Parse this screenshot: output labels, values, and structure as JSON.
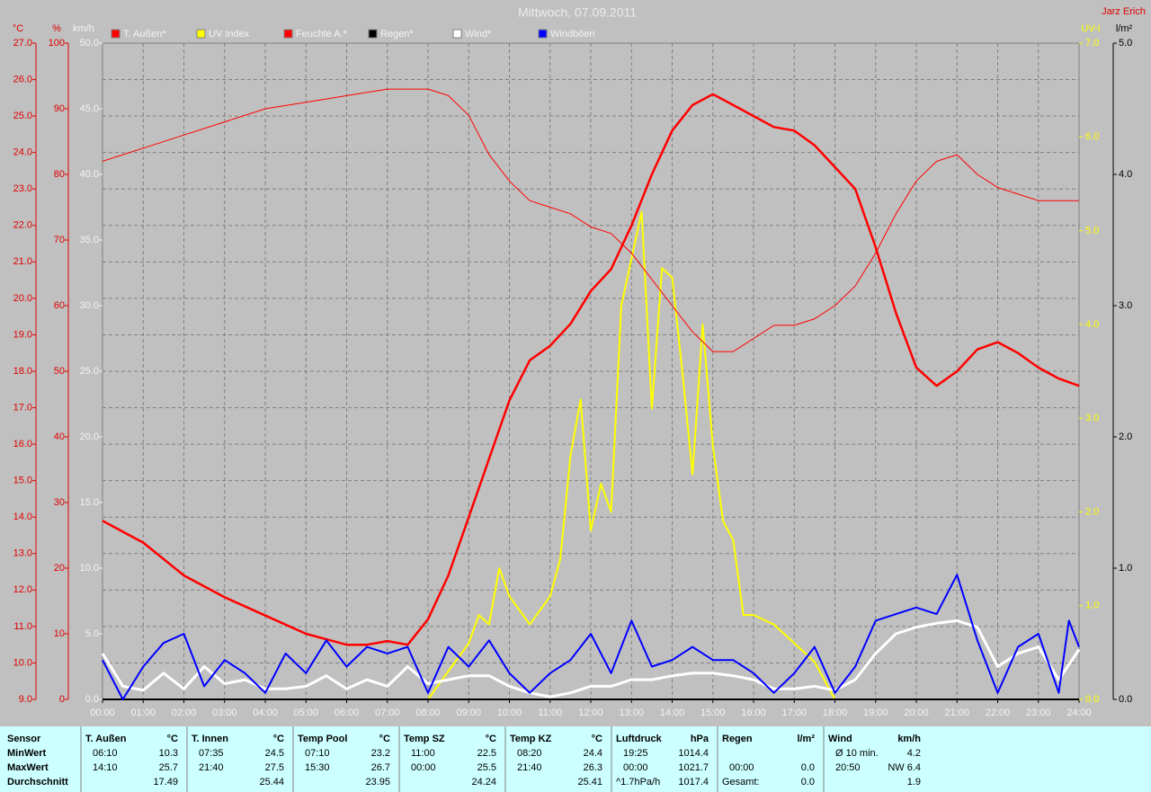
{
  "chart_data": {
    "type": "line",
    "title": "Mittwoch, 07.09.2011",
    "author": "Jarz Erich",
    "grid": true,
    "xlim": [
      0,
      24
    ],
    "xticks": [
      {
        "value": 0,
        "label": "00:00"
      },
      {
        "value": 1,
        "label": "01:00"
      },
      {
        "value": 2,
        "label": "02:00"
      },
      {
        "value": 3,
        "label": "03:00"
      },
      {
        "value": 4,
        "label": "04:00"
      },
      {
        "value": 5,
        "label": "05:00"
      },
      {
        "value": 6,
        "label": "06:00"
      },
      {
        "value": 7,
        "label": "07:00"
      },
      {
        "value": 8,
        "label": "08:00"
      },
      {
        "value": 9,
        "label": "09:00"
      },
      {
        "value": 10,
        "label": "10:00"
      },
      {
        "value": 11,
        "label": "11:00"
      },
      {
        "value": 12,
        "label": "12:00"
      },
      {
        "value": 13,
        "label": "13:00"
      },
      {
        "value": 14,
        "label": "14:00"
      },
      {
        "value": 15,
        "label": "15:00"
      },
      {
        "value": 16,
        "label": "16:00"
      },
      {
        "value": 17,
        "label": "17:00"
      },
      {
        "value": 18,
        "label": "18:00"
      },
      {
        "value": 19,
        "label": "19:00"
      },
      {
        "value": 20,
        "label": "20:00"
      },
      {
        "value": 21,
        "label": "21:00"
      },
      {
        "value": 22,
        "label": "22:00"
      },
      {
        "value": 23,
        "label": "23:00"
      },
      {
        "value": 24,
        "label": "24:00"
      }
    ],
    "axes": {
      "temp": {
        "label": "°C",
        "color": "#e00000",
        "lim": [
          9,
          27
        ],
        "ticks": [
          {
            "value": 9,
            "label": "9.0"
          },
          {
            "value": 10,
            "label": "10.0"
          },
          {
            "value": 11,
            "label": "11.0"
          },
          {
            "value": 12,
            "label": "12.0"
          },
          {
            "value": 13,
            "label": "13.0"
          },
          {
            "value": 14,
            "label": "14.0"
          },
          {
            "value": 15,
            "label": "15.0"
          },
          {
            "value": 16,
            "label": "16.0"
          },
          {
            "value": 17,
            "label": "17.0"
          },
          {
            "value": 18,
            "label": "18.0"
          },
          {
            "value": 19,
            "label": "19.0"
          },
          {
            "value": 20,
            "label": "20.0"
          },
          {
            "value": 21,
            "label": "21.0"
          },
          {
            "value": 22,
            "label": "22.0"
          },
          {
            "value": 23,
            "label": "23.0"
          },
          {
            "value": 24,
            "label": "24.0"
          },
          {
            "value": 25,
            "label": "25.0"
          },
          {
            "value": 26,
            "label": "26.0"
          },
          {
            "value": 27,
            "label": "27.0"
          }
        ]
      },
      "humidity": {
        "label": "%",
        "color": "#e00000",
        "lim": [
          0,
          100
        ],
        "ticks": [
          0,
          10,
          20,
          30,
          40,
          50,
          60,
          70,
          80,
          90,
          100
        ]
      },
      "wind": {
        "label": "km/h",
        "color": "#f4f4f4",
        "lim": [
          0,
          50
        ],
        "ticks": [
          {
            "value": 0,
            "label": "0.0"
          },
          {
            "value": 5,
            "label": "5.0"
          },
          {
            "value": 10,
            "label": "10.0"
          },
          {
            "value": 15,
            "label": "15.0"
          },
          {
            "value": 20,
            "label": "20.0"
          },
          {
            "value": 25,
            "label": "25.0"
          },
          {
            "value": 30,
            "label": "30.0"
          },
          {
            "value": 35,
            "label": "35.0"
          },
          {
            "value": 40,
            "label": "40.0"
          },
          {
            "value": 45,
            "label": "45.0"
          },
          {
            "value": 50,
            "label": "50.0"
          }
        ]
      },
      "uv": {
        "label": "UV-I",
        "color": "#ffff00",
        "lim": [
          0,
          7
        ],
        "ticks": [
          {
            "value": 0,
            "label": "0.0"
          },
          {
            "value": 1,
            "label": "1.0"
          },
          {
            "value": 2,
            "label": "2.0"
          },
          {
            "value": 3,
            "label": "3.0"
          },
          {
            "value": 4,
            "label": "4.0"
          },
          {
            "value": 5,
            "label": "5.0"
          },
          {
            "value": 6,
            "label": "6.0"
          },
          {
            "value": 7,
            "label": "7.0"
          }
        ]
      },
      "rain": {
        "label": "l/m²",
        "color": "#000000",
        "lim": [
          0,
          5
        ],
        "ticks": [
          {
            "value": 0,
            "label": "0.0"
          },
          {
            "value": 1,
            "label": "1.0"
          },
          {
            "value": 2,
            "label": "2.0"
          },
          {
            "value": 3,
            "label": "3.0"
          },
          {
            "value": 4,
            "label": "4.0"
          },
          {
            "value": 5,
            "label": "5.0"
          }
        ]
      }
    },
    "series": [
      {
        "name": "T. Außen*",
        "color": "#ff0000",
        "axis": "temp",
        "width": 2.5,
        "x": [
          0,
          1,
          2,
          3,
          4,
          5,
          6,
          6.5,
          7,
          7.5,
          8,
          8.5,
          9,
          9.5,
          10,
          10.5,
          11,
          11.5,
          12,
          12.5,
          13,
          13.5,
          14,
          14.5,
          15,
          15.5,
          16,
          16.5,
          17,
          17.5,
          18,
          18.5,
          19,
          19.5,
          20,
          20.5,
          21,
          21.5,
          22,
          22.5,
          23,
          23.5,
          24
        ],
        "values": [
          13.9,
          13.3,
          12.4,
          11.8,
          11.3,
          10.8,
          10.5,
          10.5,
          10.6,
          10.5,
          11.2,
          12.4,
          14.0,
          15.6,
          17.2,
          18.3,
          18.7,
          19.3,
          20.2,
          20.8,
          22.0,
          23.4,
          24.6,
          25.3,
          25.6,
          25.3,
          25.0,
          24.7,
          24.6,
          24.2,
          23.6,
          23.0,
          21.4,
          19.6,
          18.1,
          17.6,
          18.0,
          18.6,
          18.8,
          18.5,
          18.1,
          17.8,
          17.6
        ]
      },
      {
        "name": "UV Index",
        "color": "#ffff00",
        "axis": "uv",
        "width": 2,
        "x": [
          0,
          8,
          8.5,
          9,
          9.25,
          9.5,
          9.75,
          10,
          10.5,
          11,
          11.25,
          11.5,
          11.75,
          12,
          12.25,
          12.5,
          12.75,
          13,
          13.25,
          13.5,
          13.75,
          14,
          14.25,
          14.5,
          14.75,
          15,
          15.25,
          15.5,
          15.75,
          16,
          16.5,
          17,
          17.5,
          17.75,
          18,
          24
        ],
        "values": [
          0,
          0,
          0.3,
          0.6,
          0.9,
          0.8,
          1.4,
          1.1,
          0.8,
          1.1,
          1.5,
          2.6,
          3.2,
          1.8,
          2.3,
          2.0,
          4.2,
          4.7,
          5.2,
          3.1,
          4.6,
          4.5,
          3.5,
          2.4,
          4.0,
          2.7,
          1.9,
          1.7,
          0.9,
          0.9,
          0.8,
          0.6,
          0.4,
          0.2,
          0,
          0
        ]
      },
      {
        "name": "Feuchte A.*",
        "color": "#ff0000",
        "axis": "humidity",
        "width": 1,
        "x": [
          0,
          1,
          2,
          3,
          4,
          5,
          6,
          7,
          8,
          8.5,
          9,
          9.5,
          10,
          10.5,
          11,
          11.5,
          12,
          12.5,
          13,
          13.5,
          14,
          14.5,
          15,
          15.5,
          16,
          16.5,
          17,
          17.5,
          18,
          18.5,
          19,
          19.5,
          20,
          20.5,
          21,
          21.5,
          22,
          22.5,
          23,
          24
        ],
        "values": [
          82,
          84,
          86,
          88,
          90,
          91,
          92,
          93,
          93,
          92,
          89,
          83,
          79,
          76,
          75,
          74,
          72,
          71,
          68,
          64,
          60,
          56,
          53,
          53,
          55,
          57,
          57,
          58,
          60,
          63,
          68,
          74,
          79,
          82,
          83,
          80,
          78,
          77,
          76,
          76
        ]
      },
      {
        "name": "Regen*",
        "color": "#000000",
        "axis": "rain",
        "width": 2,
        "x": [
          0,
          24
        ],
        "values": [
          0,
          0
        ]
      },
      {
        "name": "Wind*",
        "color": "#ffffff",
        "axis": "wind",
        "width": 3,
        "x": [
          0,
          0.5,
          1,
          1.5,
          2,
          2.5,
          3,
          3.5,
          4,
          4.5,
          5,
          5.5,
          6,
          6.5,
          7,
          7.5,
          8,
          8.5,
          9,
          9.5,
          10,
          10.5,
          11,
          11.5,
          12,
          12.5,
          13,
          13.5,
          14,
          14.5,
          15,
          15.5,
          16,
          16.5,
          17,
          17.5,
          18,
          18.5,
          19,
          19.5,
          20,
          20.5,
          21,
          21.5,
          22,
          22.5,
          23,
          23.5,
          24
        ],
        "values": [
          3.5,
          1.0,
          0.7,
          2.0,
          0.8,
          2.5,
          1.2,
          1.5,
          0.8,
          0.8,
          1.0,
          1.8,
          0.8,
          1.5,
          1.0,
          2.5,
          1.2,
          1.5,
          1.8,
          1.8,
          1.0,
          0.5,
          0.2,
          0.5,
          1.0,
          1.0,
          1.5,
          1.5,
          1.8,
          2.0,
          2.0,
          1.8,
          1.5,
          0.8,
          0.8,
          1.0,
          0.7,
          1.5,
          3.5,
          5.0,
          5.5,
          5.8,
          6.0,
          5.5,
          2.5,
          3.5,
          4.0,
          1.5,
          3.8
        ]
      },
      {
        "name": "Windböen",
        "color": "#0000ff",
        "axis": "wind",
        "width": 2,
        "x": [
          0,
          0.5,
          1,
          1.5,
          2,
          2.5,
          3,
          3.5,
          4,
          4.5,
          5,
          5.5,
          6,
          6.5,
          7,
          7.5,
          8,
          8.5,
          9,
          9.5,
          10,
          10.5,
          11,
          11.5,
          12,
          12.5,
          13,
          13.5,
          14,
          14.5,
          15,
          15.5,
          16,
          16.5,
          17,
          17.5,
          18,
          18.5,
          19,
          19.5,
          20,
          20.5,
          21,
          21.5,
          22,
          22.5,
          23,
          23.5,
          23.75,
          24
        ],
        "values": [
          3,
          0,
          2.5,
          4.3,
          5,
          1,
          3,
          2,
          0.5,
          3.5,
          2,
          4.5,
          2.5,
          4,
          3.5,
          4,
          0.5,
          4,
          2.5,
          4.5,
          2,
          0.5,
          2,
          3,
          5,
          2,
          6,
          2.5,
          3,
          4,
          3,
          3,
          2,
          0.5,
          2,
          4,
          0.5,
          2.5,
          6,
          6.5,
          7,
          6.5,
          9.5,
          4.5,
          0.5,
          4,
          5,
          0.5,
          6,
          4
        ]
      }
    ]
  },
  "stats": {
    "row_labels": [
      "Sensor",
      "MinWert",
      "MaxWert",
      "Durchschnitt"
    ],
    "blocks": [
      {
        "name": "T. Außen",
        "unit": "°C",
        "rows": [
          [
            "06:10",
            "10.3"
          ],
          [
            "14:10",
            "25.7"
          ],
          [
            null,
            "17.49"
          ]
        ]
      },
      {
        "name": "T. Innen",
        "unit": "°C",
        "rows": [
          [
            "07:35",
            "24.5"
          ],
          [
            "21:40",
            "27.5"
          ],
          [
            null,
            "25.44"
          ]
        ]
      },
      {
        "name": "Temp Pool",
        "unit": "°C",
        "rows": [
          [
            "07:10",
            "23.2"
          ],
          [
            "15:30",
            "26.7"
          ],
          [
            null,
            "23.95"
          ]
        ]
      },
      {
        "name": "Temp SZ",
        "unit": "°C",
        "rows": [
          [
            "11:00",
            "22.5"
          ],
          [
            "00:00",
            "25.5"
          ],
          [
            null,
            "24.24"
          ]
        ]
      },
      {
        "name": "Temp KZ",
        "unit": "°C",
        "rows": [
          [
            "08:20",
            "24.4"
          ],
          [
            "21:40",
            "26.3"
          ],
          [
            null,
            "25.41"
          ]
        ]
      },
      {
        "name": "Luftdruck",
        "unit": "hPa",
        "rows": [
          [
            "19:25",
            "1014.4"
          ],
          [
            "00:00",
            "1021.7"
          ],
          [
            "^1.7hPa/h",
            "1017.4"
          ]
        ]
      },
      {
        "name": "Regen",
        "unit": "l/m²",
        "rows": [
          [
            null,
            null
          ],
          [
            "00:00",
            "0.0"
          ],
          [
            "Gesamt:",
            "0.0"
          ]
        ]
      },
      {
        "name": "Wind",
        "unit": "km/h",
        "rows": [
          [
            "Ø 10 min.",
            "4.2"
          ],
          [
            "20:50",
            "NW 6.4"
          ],
          [
            null,
            "1.9"
          ]
        ]
      }
    ]
  }
}
